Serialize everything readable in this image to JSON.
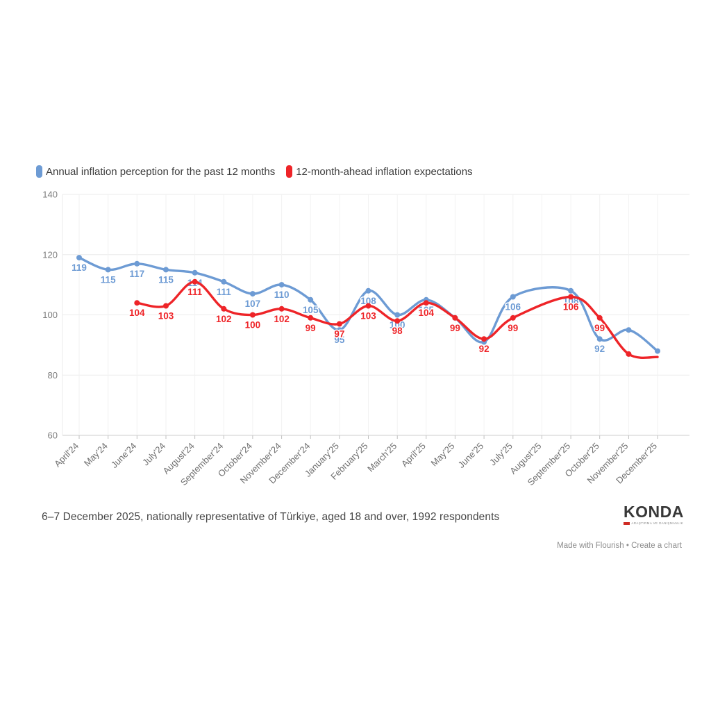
{
  "legend": {
    "items": [
      {
        "label": "Annual inflation perception for the past 12 months",
        "color": "#6d9bd4"
      },
      {
        "label": "12-month-ahead inflation expectations",
        "color": "#ee2428"
      }
    ]
  },
  "chart_data": {
    "type": "line",
    "title": "",
    "categories": [
      "April'24",
      "May'24",
      "June'24",
      "July'24",
      "August'24",
      "September'24",
      "October'24",
      "November'24",
      "December'24",
      "January'25",
      "February'25",
      "March'25",
      "April'25",
      "May'25",
      "June'25",
      "July'25",
      "August'25",
      "September'25",
      "October'25",
      "November'25",
      "December'25"
    ],
    "series": [
      {
        "name": "Annual inflation perception for the past 12 months",
        "color": "#6d9bd4",
        "values": [
          119,
          115,
          117,
          115,
          114,
          111,
          107,
          110,
          105,
          95,
          108,
          100,
          105,
          99,
          91,
          106,
          null,
          108,
          92,
          95,
          88
        ],
        "labels": [
          "119",
          "115",
          "117",
          "115",
          "114",
          "111",
          "107",
          "110",
          "105",
          "95",
          "108",
          "100",
          "105",
          null,
          null,
          "106",
          null,
          "108",
          "92",
          null,
          null
        ],
        "hide_dots": []
      },
      {
        "name": "12-month-ahead inflation expectations",
        "color": "#ee2428",
        "values": [
          null,
          null,
          104,
          103,
          111,
          102,
          100,
          102,
          99,
          97,
          103,
          98,
          104,
          99,
          92,
          99,
          null,
          106,
          99,
          87,
          86
        ],
        "labels": [
          null,
          null,
          "104",
          "103",
          "111",
          "102",
          "100",
          "102",
          "99",
          "97",
          "103",
          "98",
          "104",
          "99",
          "92",
          "99",
          null,
          "106",
          "99",
          null,
          null
        ],
        "hide_dots": [
          20
        ]
      }
    ],
    "y_axis": {
      "min": 60,
      "max": 140,
      "ticks": [
        140,
        120,
        100,
        80,
        60
      ]
    },
    "x_axis": {
      "label_rotation": -45
    },
    "grid": "on",
    "legend_position": "top-left",
    "line_shape": "smooth-spline"
  },
  "footer": {
    "caption": "6–7 December 2025, nationally representative of Türkiye, aged 18 and over, 1992 respondents",
    "logo": {
      "text": "KONDA",
      "tagline": "ARAŞTIRMA VE DANIŞMANLIK",
      "accent_color": "#cf2b24"
    },
    "credit": {
      "made_with": "Made with Flourish",
      "separator": "•",
      "create": "Create a chart"
    }
  }
}
